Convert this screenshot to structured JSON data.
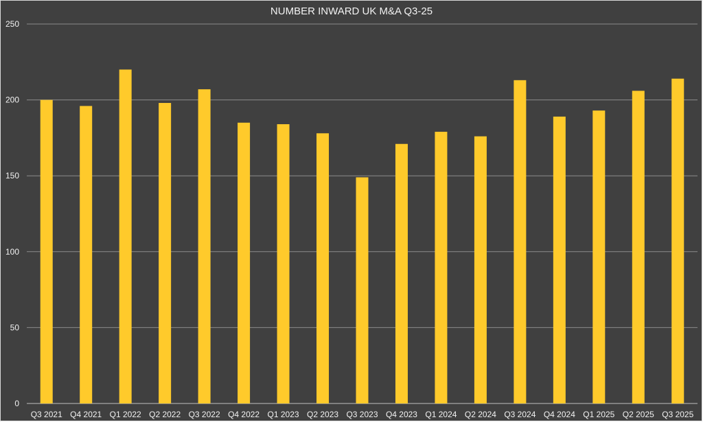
{
  "chart_data": {
    "type": "bar",
    "title": "NUMBER INWARD UK M&A Q3-25",
    "xlabel": "",
    "ylabel": "",
    "categories": [
      "Q3 2021",
      "Q4 2021",
      "Q1 2022",
      "Q2 2022",
      "Q3 2022",
      "Q4 2022",
      "Q1 2023",
      "Q2 2023",
      "Q3 2023",
      "Q4 2023",
      "Q1 2024",
      "Q2 2024",
      "Q3 2024",
      "Q4 2024",
      "Q1 2025",
      "Q2 2025",
      "Q3 2025"
    ],
    "values": [
      200,
      196,
      220,
      198,
      207,
      185,
      184,
      178,
      149,
      171,
      179,
      176,
      213,
      189,
      193,
      206,
      214
    ],
    "ylim": [
      0,
      250
    ],
    "yticks": [
      0,
      50,
      100,
      150,
      200,
      250
    ],
    "grid": true,
    "legend": "none",
    "colors": {
      "background": "#404040",
      "bar": "#FFCA2B",
      "text": "#F2F2F2",
      "grid": "#8C8C8C"
    }
  }
}
